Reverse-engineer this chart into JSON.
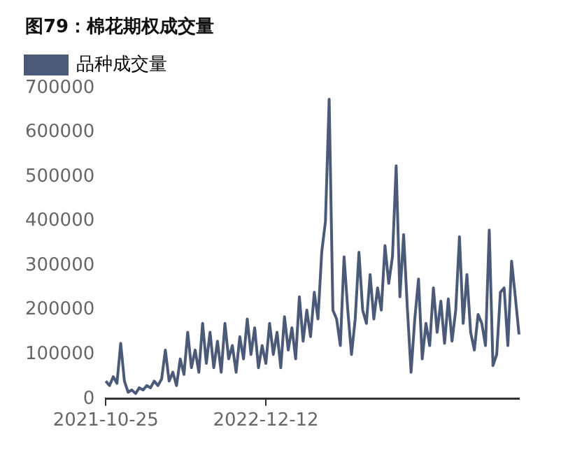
{
  "chart_data": {
    "type": "line",
    "title": "图79：棉花期权成交量",
    "categories": [
      "2021-10-25",
      null,
      null,
      null,
      null,
      null,
      null,
      null,
      null,
      null,
      null,
      null,
      null,
      null,
      null,
      null,
      null,
      null,
      null,
      null,
      null,
      null,
      null,
      null,
      null,
      null,
      null,
      null,
      null,
      null,
      null,
      null,
      null,
      null,
      null,
      null,
      null,
      null,
      null,
      null,
      null,
      null,
      null,
      "2022-12-12",
      null,
      null,
      null,
      null,
      null,
      null,
      null,
      null,
      null,
      null,
      null,
      null,
      null,
      null,
      null,
      null,
      null,
      null,
      null,
      null,
      null,
      null,
      null,
      null,
      null,
      null,
      null,
      null,
      null,
      null,
      null,
      null,
      null,
      null,
      null,
      null,
      null,
      null,
      null,
      null,
      null,
      null,
      null,
      null,
      null,
      null,
      null,
      null,
      null,
      null,
      null,
      null,
      null,
      null,
      null,
      null,
      null,
      null,
      null,
      null,
      null,
      null,
      null,
      null,
      null,
      null,
      null,
      null
    ],
    "series": [
      {
        "name": "品种成交量",
        "color": "#4a5a78",
        "values": [
          40000,
          30000,
          50000,
          35000,
          125000,
          40000,
          15000,
          20000,
          12000,
          25000,
          20000,
          30000,
          25000,
          40000,
          30000,
          45000,
          110000,
          40000,
          60000,
          30000,
          90000,
          55000,
          150000,
          70000,
          110000,
          60000,
          170000,
          80000,
          150000,
          70000,
          130000,
          60000,
          170000,
          90000,
          120000,
          60000,
          140000,
          90000,
          180000,
          100000,
          160000,
          70000,
          120000,
          80000,
          170000,
          100000,
          150000,
          70000,
          185000,
          110000,
          160000,
          90000,
          230000,
          130000,
          200000,
          140000,
          240000,
          180000,
          330000,
          400000,
          675000,
          200000,
          180000,
          120000,
          320000,
          200000,
          100000,
          180000,
          330000,
          200000,
          170000,
          280000,
          180000,
          250000,
          200000,
          345000,
          260000,
          320000,
          525000,
          230000,
          370000,
          205000,
          60000,
          180000,
          270000,
          90000,
          170000,
          120000,
          250000,
          150000,
          220000,
          125000,
          225000,
          130000,
          200000,
          365000,
          170000,
          280000,
          150000,
          110000,
          190000,
          170000,
          120000,
          380000,
          75000,
          100000,
          240000,
          250000,
          120000,
          310000,
          230000,
          145000
        ]
      }
    ],
    "ylim": [
      0,
      700000
    ],
    "yticks": [
      0,
      100000,
      200000,
      300000,
      400000,
      500000,
      600000,
      700000
    ],
    "grid": false,
    "legend": "top left",
    "marker": "none",
    "line_style": "solid"
  }
}
